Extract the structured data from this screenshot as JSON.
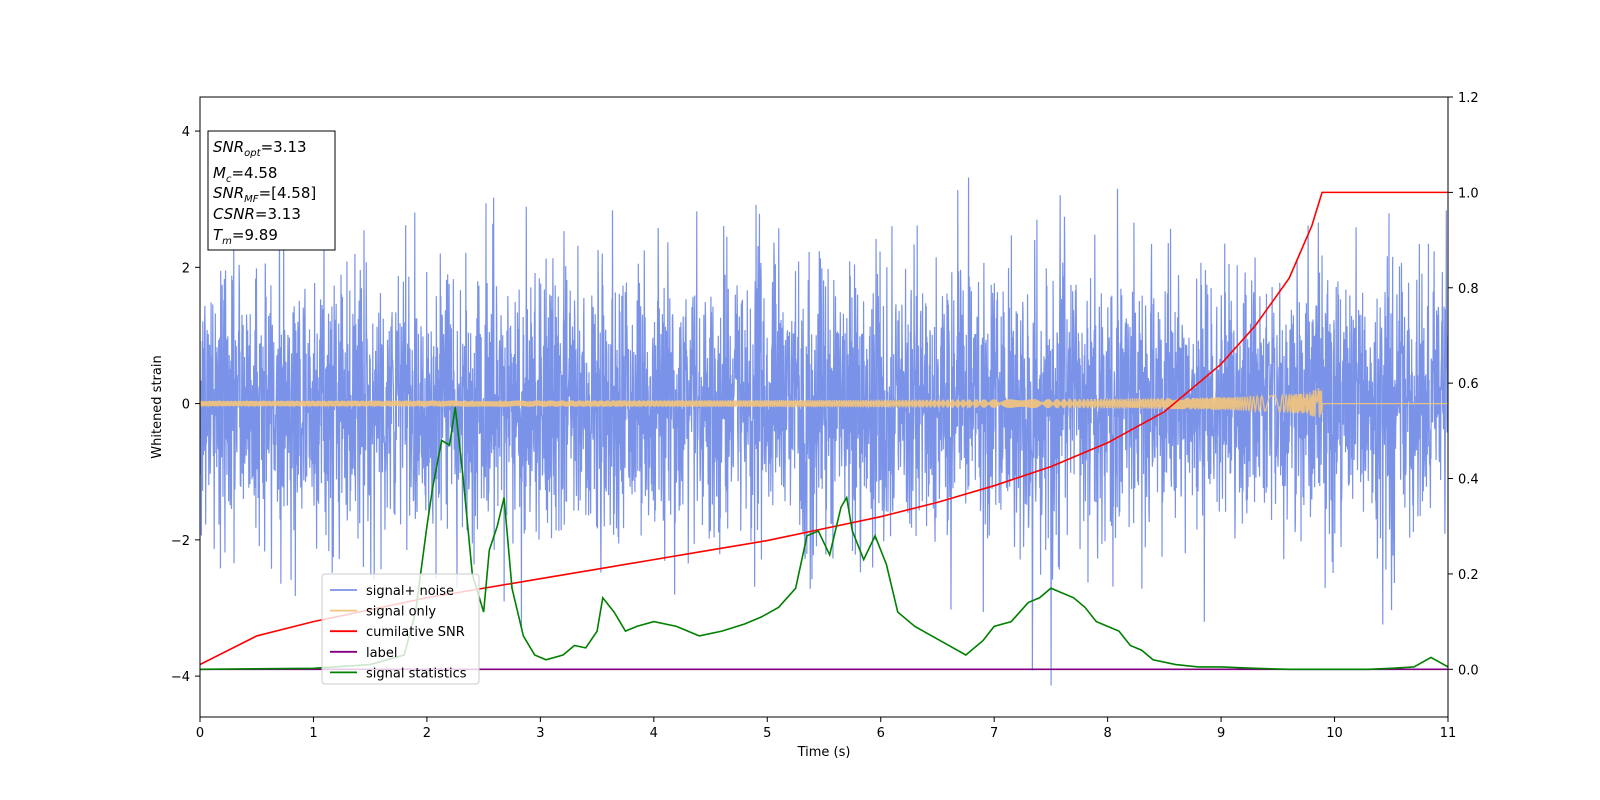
{
  "chart_data": {
    "type": "line",
    "xlabel": "Time (s)",
    "ylabel": "Whitened strain",
    "xlim": [
      0,
      11
    ],
    "ylim": [
      -4.6,
      4.5
    ],
    "y2lim": [
      -0.1,
      1.2
    ],
    "x_ticks": [
      "0",
      "1",
      "2",
      "3",
      "4",
      "5",
      "6",
      "7",
      "8",
      "9",
      "10",
      "11"
    ],
    "y_ticks": [
      "−4",
      "−2",
      "0",
      "2",
      "4"
    ],
    "y2_ticks": [
      "0.0",
      "0.2",
      "0.4",
      "0.6",
      "0.8",
      "1.0",
      "1.2"
    ],
    "legend_position": "lower-left",
    "stats_box": {
      "snr_opt": {
        "main": "SNR",
        "sub": "opt",
        "value": "=3.13"
      },
      "mc": {
        "main": "M",
        "sub": "c",
        "value": "=4.58"
      },
      "snr_mf": {
        "main": "SNR",
        "sub": "MF",
        "value": "=[4.58]"
      },
      "csnr": {
        "main": "CSNR",
        "value": "=3.13"
      },
      "tm": {
        "main": "T",
        "sub": "m",
        "value": "=9.89"
      }
    },
    "series": [
      {
        "name": "signal+ noise",
        "color": "#7a93e8",
        "axis": "left",
        "kind": "noise",
        "amplitude_range": [
          -4.15,
          4.15
        ],
        "x_range": [
          0,
          11
        ]
      },
      {
        "name": "signal only",
        "color": "#f4c47a",
        "axis": "left",
        "kind": "chirp",
        "merger_time": 9.89,
        "peak_amplitude": 0.28
      },
      {
        "name": "cumilative SNR",
        "color": "#ff0000",
        "axis": "right",
        "x": [
          0,
          0.5,
          1,
          1.5,
          2,
          2.5,
          3,
          3.5,
          4,
          4.5,
          5,
          5.5,
          6,
          6.5,
          7,
          7.5,
          8,
          8.5,
          9,
          9.3,
          9.6,
          9.8,
          9.89,
          11
        ],
        "values": [
          0.01,
          0.07,
          0.1,
          0.125,
          0.15,
          0.17,
          0.19,
          0.21,
          0.23,
          0.25,
          0.27,
          0.295,
          0.32,
          0.35,
          0.385,
          0.425,
          0.475,
          0.54,
          0.64,
          0.72,
          0.82,
          0.93,
          1.0,
          1.0
        ]
      },
      {
        "name": "label",
        "color": "#800080",
        "axis": "right",
        "x": [
          0,
          11
        ],
        "values": [
          0,
          0
        ]
      },
      {
        "name": "signal statistics",
        "color": "#008000",
        "axis": "right",
        "x": [
          0,
          1,
          1.5,
          1.8,
          1.9,
          2.0,
          2.05,
          2.13,
          2.2,
          2.25,
          2.32,
          2.4,
          2.5,
          2.55,
          2.62,
          2.68,
          2.75,
          2.85,
          2.95,
          3.05,
          3.2,
          3.3,
          3.4,
          3.5,
          3.55,
          3.65,
          3.75,
          3.85,
          4.0,
          4.2,
          4.4,
          4.6,
          4.8,
          4.95,
          5.1,
          5.25,
          5.35,
          5.45,
          5.55,
          5.65,
          5.7,
          5.75,
          5.85,
          5.95,
          6.05,
          6.15,
          6.3,
          6.45,
          6.6,
          6.75,
          6.9,
          7.0,
          7.15,
          7.3,
          7.4,
          7.5,
          7.6,
          7.7,
          7.8,
          7.9,
          8.0,
          8.1,
          8.2,
          8.3,
          8.4,
          8.6,
          8.8,
          9.0,
          9.3,
          9.6,
          10.0,
          10.3,
          10.5,
          10.7,
          10.85,
          11.0
        ],
        "values": [
          0.0,
          0.002,
          0.01,
          0.03,
          0.12,
          0.3,
          0.38,
          0.48,
          0.47,
          0.55,
          0.4,
          0.2,
          0.12,
          0.25,
          0.3,
          0.36,
          0.17,
          0.07,
          0.03,
          0.02,
          0.03,
          0.05,
          0.045,
          0.08,
          0.15,
          0.12,
          0.08,
          0.09,
          0.1,
          0.09,
          0.07,
          0.08,
          0.095,
          0.11,
          0.13,
          0.17,
          0.28,
          0.29,
          0.24,
          0.34,
          0.36,
          0.29,
          0.23,
          0.28,
          0.22,
          0.12,
          0.09,
          0.07,
          0.05,
          0.03,
          0.06,
          0.09,
          0.1,
          0.14,
          0.15,
          0.17,
          0.16,
          0.15,
          0.13,
          0.1,
          0.09,
          0.08,
          0.05,
          0.04,
          0.02,
          0.01,
          0.005,
          0.005,
          0.002,
          0.0,
          0.0,
          0.0,
          0.002,
          0.005,
          0.025,
          0.005
        ]
      }
    ]
  }
}
